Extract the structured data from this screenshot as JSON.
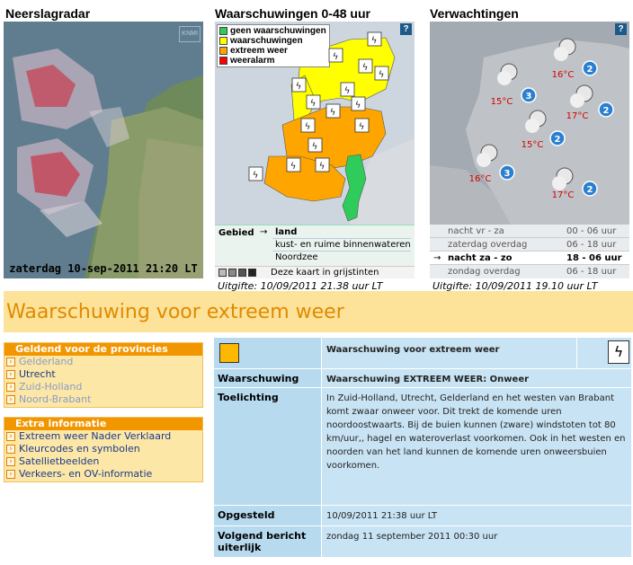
{
  "radar": {
    "title": "Neerslagradar",
    "logo": "KNMI",
    "caption": "zaterdag 10-sep-2011 21:20 LT"
  },
  "warnings": {
    "title": "Waarschuwingen 0-48 uur",
    "help": "?",
    "legend": [
      {
        "label": "geen waarschuwingen",
        "color": "#2ecc5a"
      },
      {
        "label": "waarschuwingen",
        "color": "#ffff00"
      },
      {
        "label": "extreem weer",
        "color": "#ffa500"
      },
      {
        "label": "weeralarm",
        "color": "#ff0000"
      }
    ],
    "area_label": "Gebied",
    "area_arrow": "→",
    "areas": [
      "land",
      "kust- en ruime binnenwateren",
      "Noordzee"
    ],
    "selected_area": "land",
    "grayscale_text": "Deze kaart in grijstinten",
    "issued": "Uitgifte: 10/09/2011 21.38 uur LT"
  },
  "forecast": {
    "title": "Verwachtingen",
    "help": "?",
    "markers": [
      {
        "temp": "15°C",
        "wind": "3"
      },
      {
        "temp": "16°C",
        "wind": "2"
      },
      {
        "temp": "17°C",
        "wind": "2"
      },
      {
        "temp": "15°C",
        "wind": "2"
      },
      {
        "temp": "16°C",
        "wind": "3"
      },
      {
        "temp": "17°C",
        "wind": "2"
      }
    ],
    "periods": [
      {
        "label": "nacht  vr - za",
        "hours": "00 - 06 uur",
        "selected": false
      },
      {
        "label": "zaterdag overdag",
        "hours": "06 - 18 uur",
        "selected": false
      },
      {
        "label": "nacht  za - zo",
        "hours": "18 - 06 uur",
        "selected": true
      },
      {
        "label": "zondag overdag",
        "hours": "06 - 18 uur",
        "selected": false
      }
    ],
    "selected_arrow": "→",
    "issued": "Uitgifte: 10/09/2011 19.10 uur LT"
  },
  "banner": {
    "title": "Waarschuwing voor extreem weer"
  },
  "provinces": {
    "header": "Geldend voor de provincies",
    "items": [
      {
        "label": "Gelderland",
        "style": "dim"
      },
      {
        "label": "Utrecht",
        "style": "link"
      },
      {
        "label": "Zuid-Holland",
        "style": "dim"
      },
      {
        "label": "Noord-Brabant",
        "style": "dim"
      }
    ]
  },
  "extra": {
    "header": "Extra informatie",
    "items": [
      {
        "label": "Extreem weer Nader Verklaard"
      },
      {
        "label": "Kleurcodes en symbolen"
      },
      {
        "label": "Satellietbeelden"
      },
      {
        "label": "Verkeers- en OV-informatie"
      }
    ]
  },
  "detail": {
    "color_code": "#ffb800",
    "header_title": "Waarschuwing voor extreem weer",
    "rows": [
      {
        "label": "Waarschuwing",
        "value": "Waarschuwing EXTREEM WEER: Onweer"
      },
      {
        "label": "Toelichting",
        "value": "In Zuid-Holland, Utrecht, Gelderland en het westen van Brabant komt zwaar onweer voor. Dit trekt de komende uren noordoostwaarts. Bij de buien kunnen (zware) windstoten tot 80 km/uur,, hagel en wateroverlast voorkomen. Ook in het westen en noorden van het land kunnen de komende uren onweersbuien voorkomen."
      },
      {
        "label": "Opgesteld",
        "value": "10/09/2011 21:38 uur LT"
      },
      {
        "label": "Volgend bericht uiterlijk",
        "value": "zondag 11 september 2011 00:30 uur"
      }
    ]
  },
  "colors": {
    "accent_orange": "#f29600",
    "banner_bg": "#fde29a",
    "detail_bg": "#c8e3f3",
    "warning_yellow": "#ffff00",
    "extreme_orange": "#ffa500",
    "no_warning_green": "#2ecc5a"
  }
}
